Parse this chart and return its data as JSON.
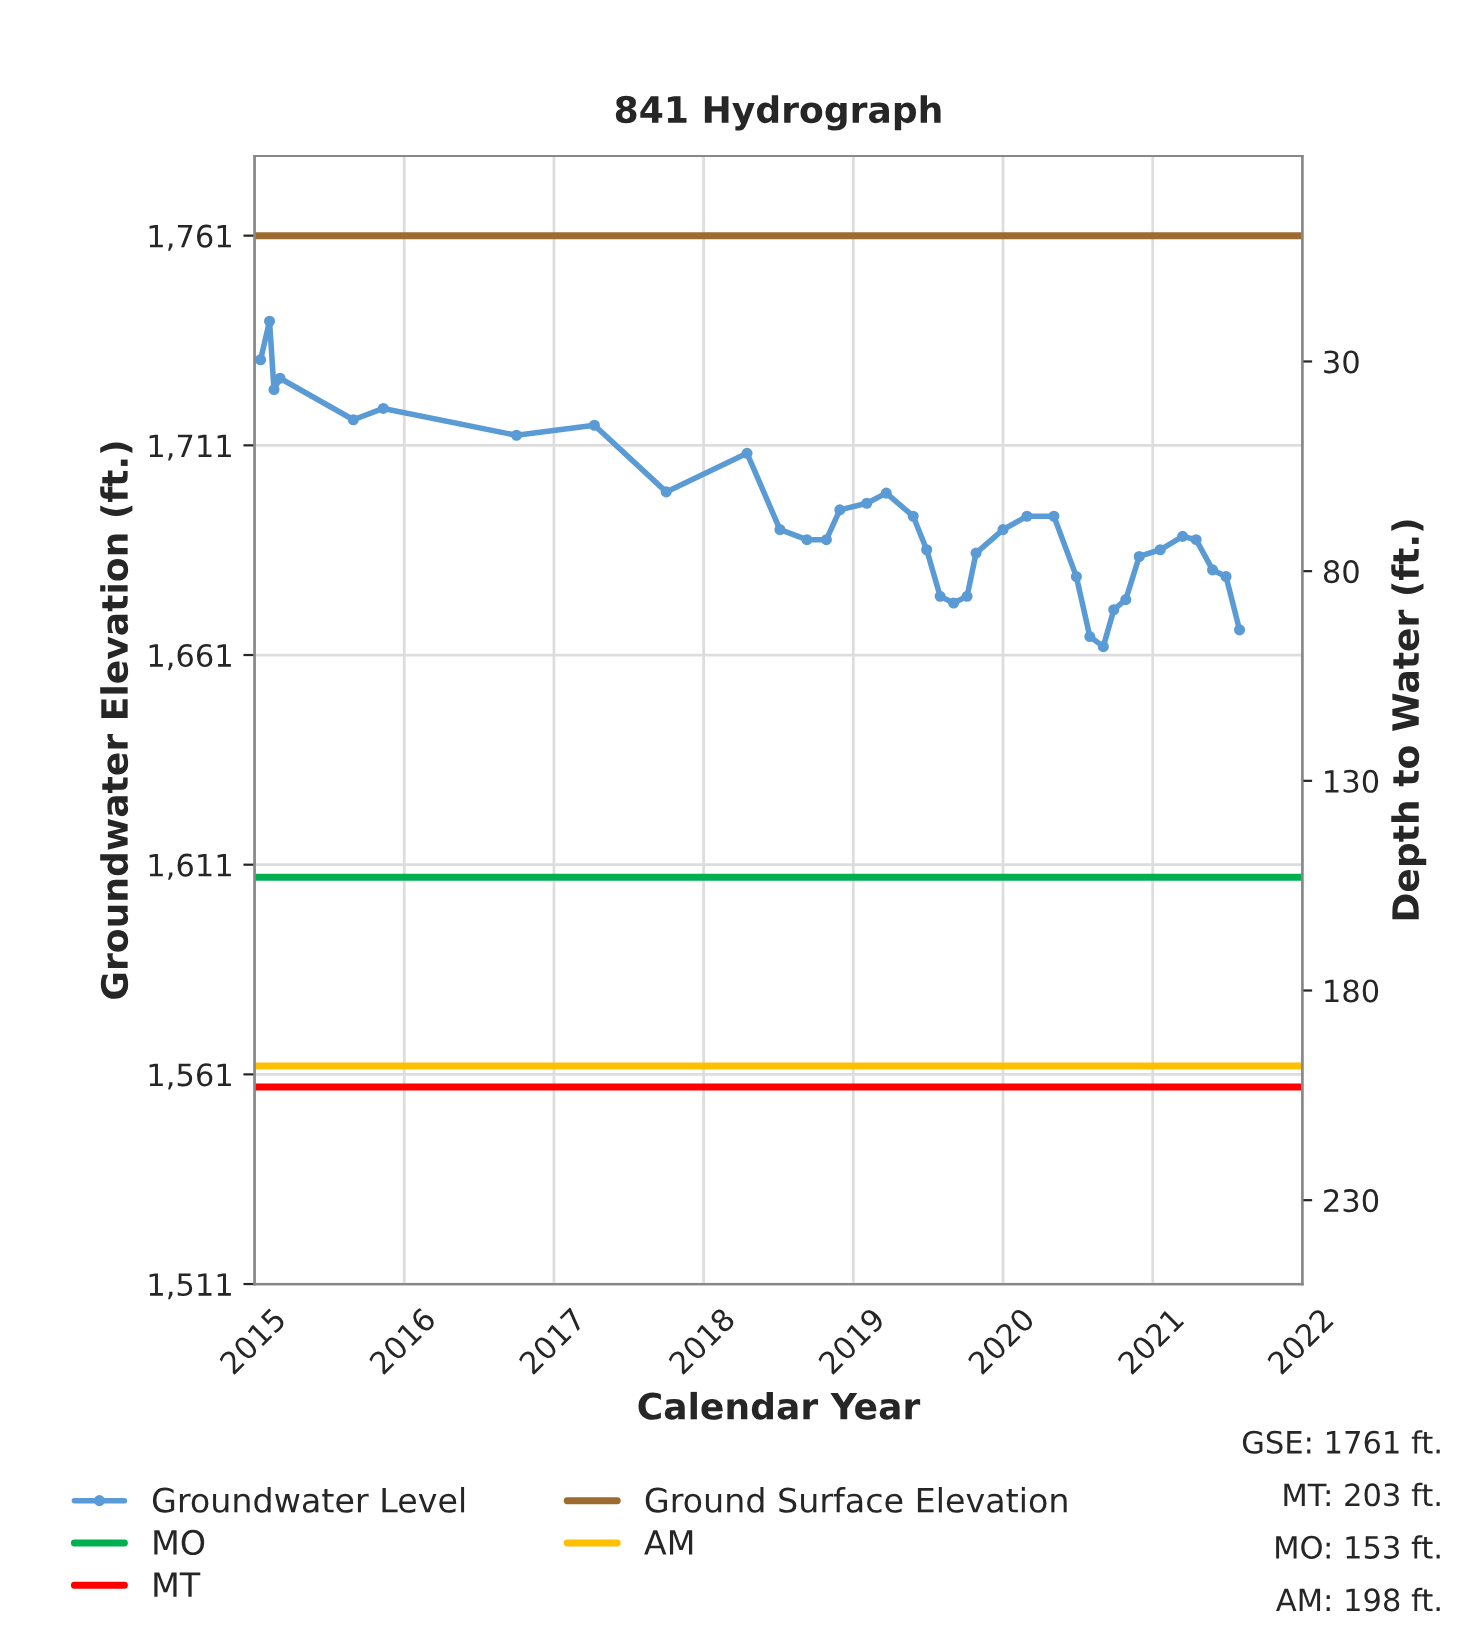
{
  "chart_data": {
    "type": "line",
    "title": "841 Hydrograph",
    "xlabel": "Calendar Year",
    "ylabel": "Groundwater Elevation (ft.)",
    "y2label": "Depth to Water (ft.)",
    "xlim": [
      2015,
      2022
    ],
    "xticks": [
      2015,
      2016,
      2017,
      2018,
      2019,
      2020,
      2021,
      2022
    ],
    "ylim": [
      1511,
      1780
    ],
    "yticks": [
      {
        "value": 1511,
        "label": "1,511"
      },
      {
        "value": 1561,
        "label": "1,561"
      },
      {
        "value": 1611,
        "label": "1,611"
      },
      {
        "value": 1661,
        "label": "1,661"
      },
      {
        "value": 1711,
        "label": "1,711"
      },
      {
        "value": 1761,
        "label": "1,761"
      }
    ],
    "y2lim": [
      250,
      -19
    ],
    "y2ticks": [
      30,
      80,
      130,
      180,
      230
    ],
    "grid": true,
    "legend": "bottom",
    "series": [
      {
        "name": "Groundwater Level",
        "color": "#5b9bd5",
        "marker": "circle",
        "x": [
          2015.04,
          2015.1,
          2015.13,
          2015.17,
          2015.66,
          2015.86,
          2016.75,
          2017.27,
          2017.75,
          2018.29,
          2018.51,
          2018.69,
          2018.82,
          2018.91,
          2019.09,
          2019.22,
          2019.4,
          2019.49,
          2019.58,
          2019.67,
          2019.76,
          2019.82,
          2020.0,
          2020.16,
          2020.34,
          2020.49,
          2020.58,
          2020.67,
          2020.74,
          2020.82,
          2020.91,
          2021.05,
          2021.2,
          2021.29,
          2021.4,
          2021.49,
          2021.58
        ],
        "values": [
          1731.4,
          1740.6,
          1724.3,
          1727,
          1717.1,
          1719.8,
          1713.4,
          1715.8,
          1699.9,
          1709.1,
          1690.9,
          1688.5,
          1688.5,
          1695.6,
          1697.2,
          1699.6,
          1694.1,
          1686.1,
          1675,
          1673.4,
          1675,
          1685.3,
          1690.9,
          1694.1,
          1694.1,
          1679.7,
          1665.4,
          1663,
          1671.8,
          1674.2,
          1684.5,
          1686.1,
          1689.3,
          1688.5,
          1681.3,
          1679.7,
          1667
        ]
      },
      {
        "name": "MO",
        "color": "#00b050",
        "x": [
          2015,
          2022
        ],
        "values": [
          1608,
          1608
        ]
      },
      {
        "name": "MT",
        "color": "#ff0000",
        "x": [
          2015,
          2022
        ],
        "values": [
          1558,
          1558
        ]
      },
      {
        "name": "Ground Surface Elevation",
        "color": "#9c6b30",
        "x": [
          2015,
          2022
        ],
        "values": [
          1761,
          1761
        ]
      },
      {
        "name": "AM",
        "color": "#ffc000",
        "x": [
          2015,
          2022
        ],
        "values": [
          1563,
          1563
        ]
      }
    ],
    "annotations": [
      "GSE: 1761 ft.",
      "MT: 203 ft.",
      "MO: 153 ft.",
      "AM: 198 ft."
    ]
  }
}
